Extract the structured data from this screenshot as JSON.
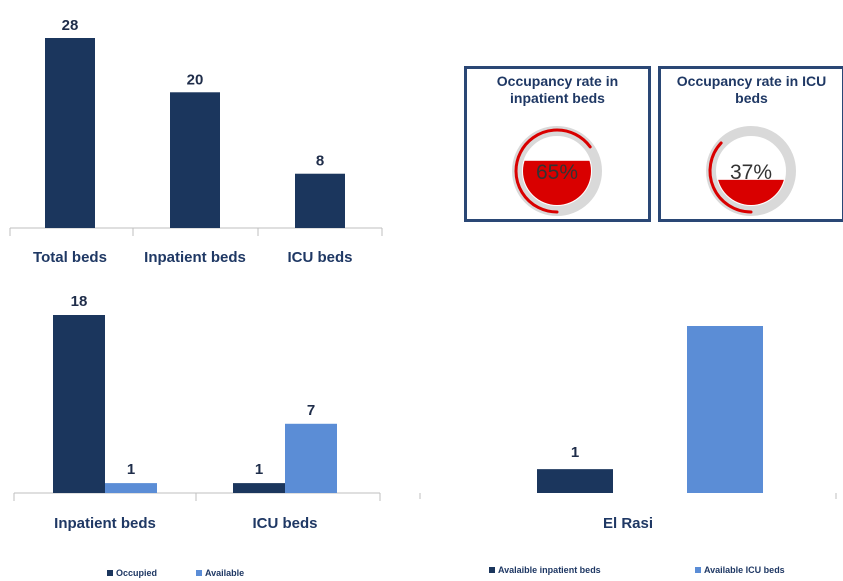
{
  "chart_data": [
    {
      "type": "bar",
      "categories": [
        "Total beds",
        "Inpatient beds",
        "ICU beds"
      ],
      "values": [
        28,
        20,
        8
      ],
      "ylim": [
        0,
        28
      ]
    },
    {
      "type": "bar",
      "categories": [
        "Inpatient beds",
        "ICU beds"
      ],
      "series": [
        {
          "name": "Occupied",
          "values": [
            18,
            1
          ]
        },
        {
          "name": "Available",
          "values": [
            1,
            7
          ]
        }
      ],
      "ylim": [
        0,
        18
      ],
      "legend": "bottom"
    },
    {
      "type": "bar",
      "categories": [
        "El Rasi"
      ],
      "series": [
        {
          "name": "Avalaible inpatient beds",
          "values": [
            1
          ]
        },
        {
          "name": "Available ICU beds",
          "values": [
            7
          ]
        }
      ],
      "data_labels": [
        true,
        false
      ],
      "legend": "bottom"
    }
  ],
  "gauges": [
    {
      "title": "Occupancy rate in inpatient beds",
      "value": 65,
      "label": "65%"
    },
    {
      "title": "Occupancy rate in ICU beds",
      "value": 37,
      "label": "37%"
    }
  ],
  "colors": {
    "dark": "#1b365d",
    "light": "#5b8dd6",
    "gauge_fill": "#d90000",
    "gauge_ring": "#d9d9d9",
    "card_border": "#2a4775"
  }
}
